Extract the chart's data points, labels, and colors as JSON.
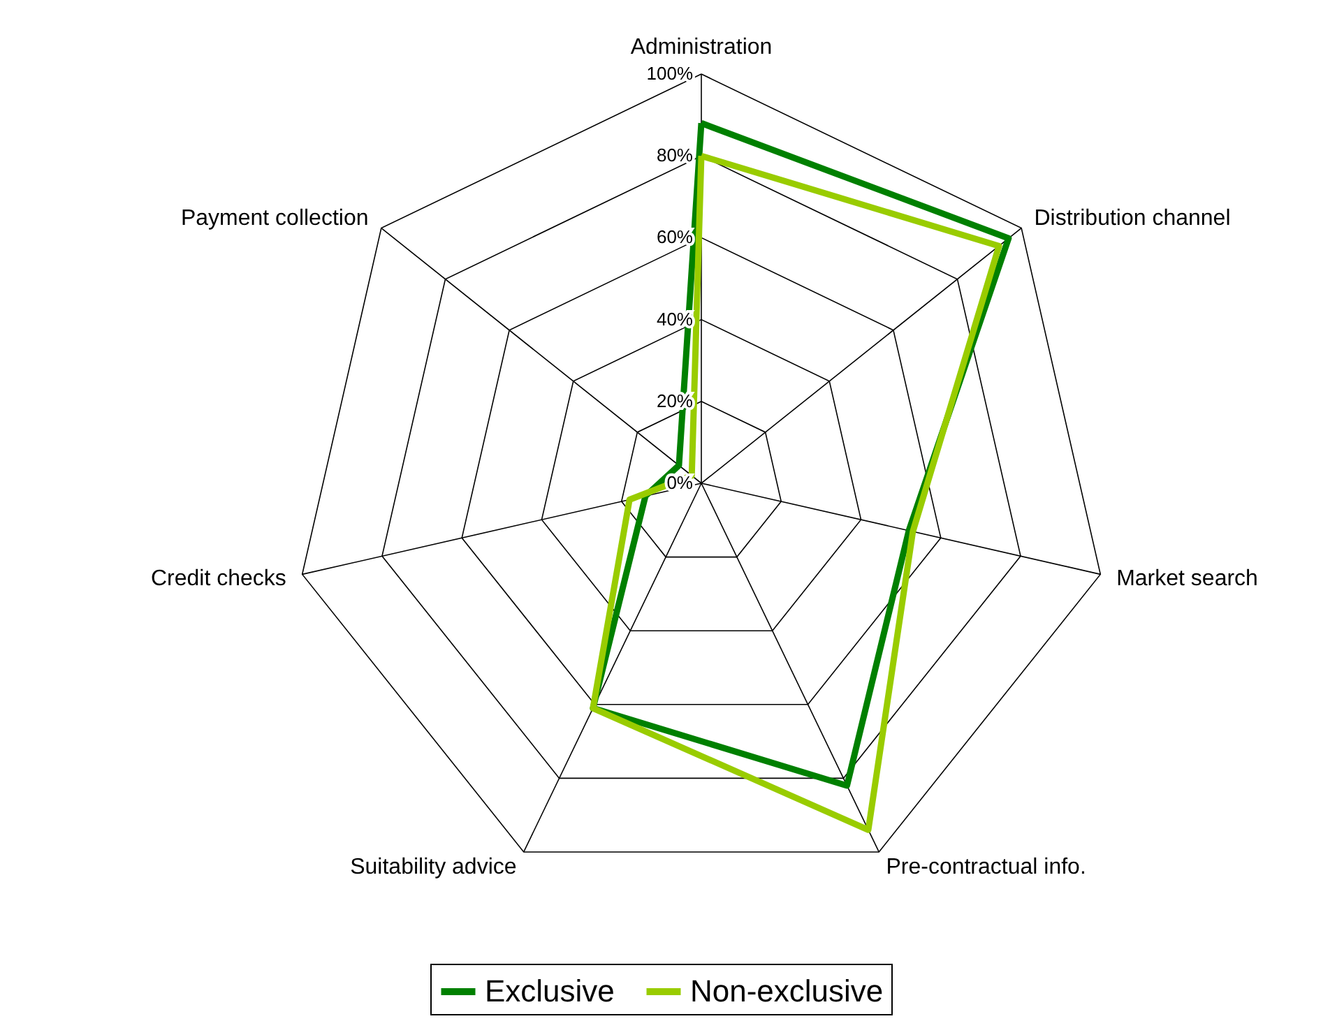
{
  "chart_data": {
    "type": "radar",
    "categories": [
      "Administration",
      "Distribution channel",
      "Market search",
      "Pre-contractual info.",
      "Suitability advice",
      "Credit checks",
      "Payment collection"
    ],
    "series": [
      {
        "name": "Exclusive",
        "color": "#008000",
        "values": [
          88,
          96,
          52,
          82,
          61,
          14,
          7
        ]
      },
      {
        "name": "Non-exclusive",
        "color": "#99cc00",
        "values": [
          80,
          93,
          53,
          94,
          61,
          18,
          3
        ]
      }
    ],
    "ylim": [
      0,
      100
    ],
    "yticks": [
      {
        "value": 0,
        "label": "0%"
      },
      {
        "value": 20,
        "label": "20%"
      },
      {
        "value": 40,
        "label": "40%"
      },
      {
        "value": 60,
        "label": "60%"
      },
      {
        "value": 80,
        "label": "80%"
      },
      {
        "value": 100,
        "label": "100%"
      }
    ],
    "grid": true,
    "legend": "bottom",
    "marker": "none",
    "line_style": "solid"
  }
}
